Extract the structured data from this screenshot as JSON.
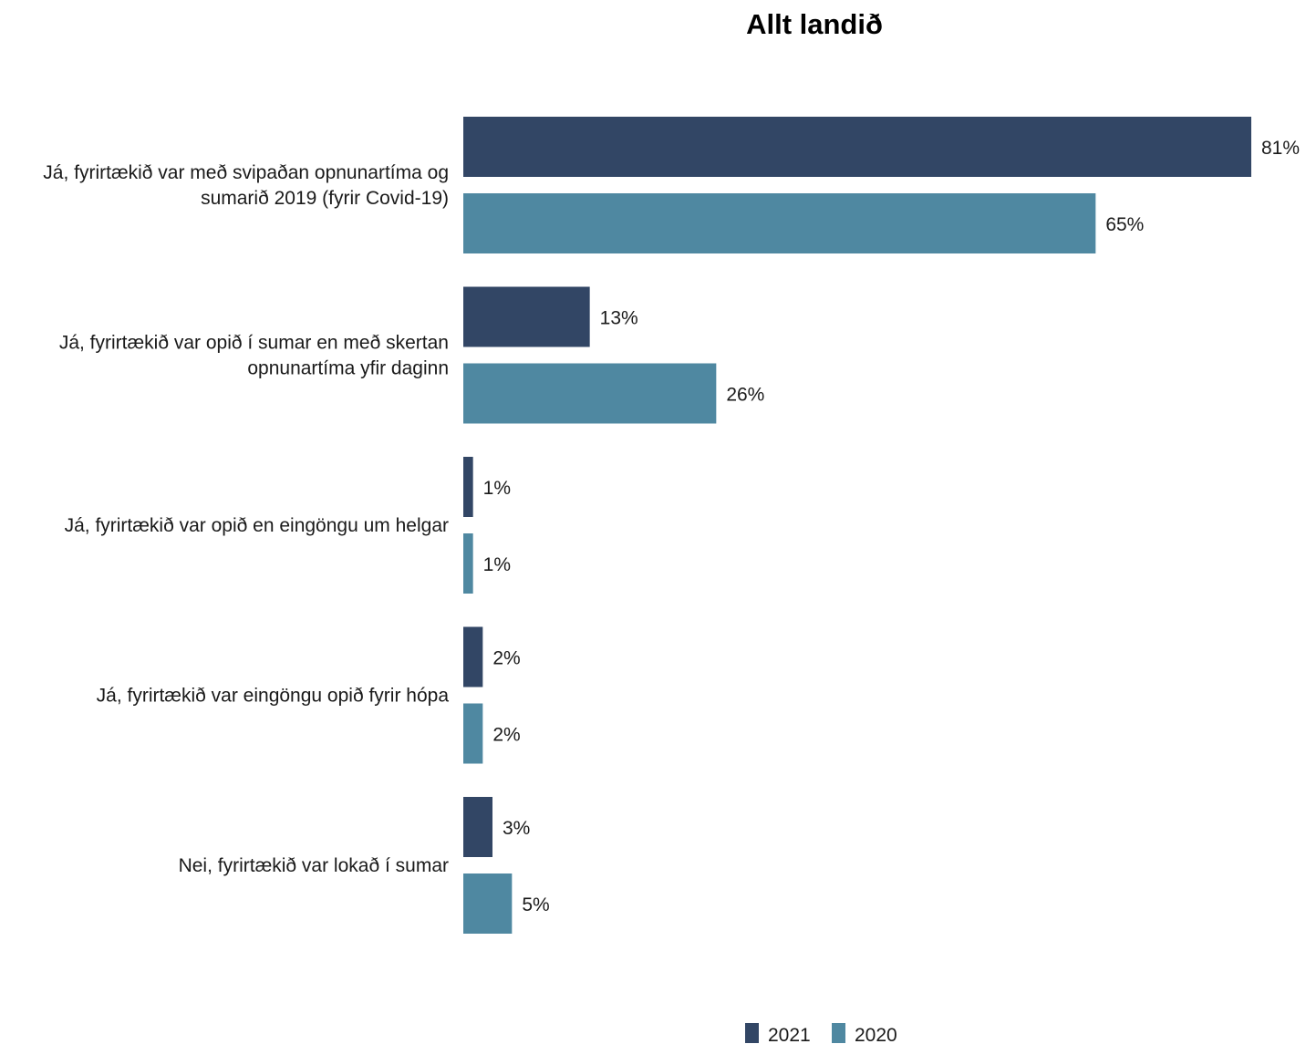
{
  "chart_data": {
    "type": "bar",
    "orientation": "horizontal",
    "title": "Allt landið",
    "xlim": [
      0,
      100
    ],
    "grid": false,
    "legend_position": "bottom",
    "categories": [
      [
        "Já, fyrirtækið var með svipaðan opnunartíma og",
        "sumarið 2019 (fyrir Covid-19)"
      ],
      [
        "Já, fyrirtækið var opið í sumar en með skertan",
        "opnunartíma yfir daginn"
      ],
      [
        "Já, fyrirtækið var opið en eingöngu um helgar"
      ],
      [
        "Já, fyrirtækið var eingöngu opið fyrir hópa"
      ],
      [
        "Nei, fyrirtækið var lokað í sumar"
      ]
    ],
    "series": [
      {
        "name": "2021",
        "color": "#324665",
        "values": [
          81,
          13,
          1,
          2,
          3
        ],
        "labels": [
          "81%",
          "13%",
          "1%",
          "2%",
          "3%"
        ]
      },
      {
        "name": "2020",
        "color": "#4f88a1",
        "values": [
          65,
          26,
          1,
          2,
          5
        ],
        "labels": [
          "65%",
          "26%",
          "1%",
          "2%",
          "5%"
        ]
      }
    ]
  }
}
